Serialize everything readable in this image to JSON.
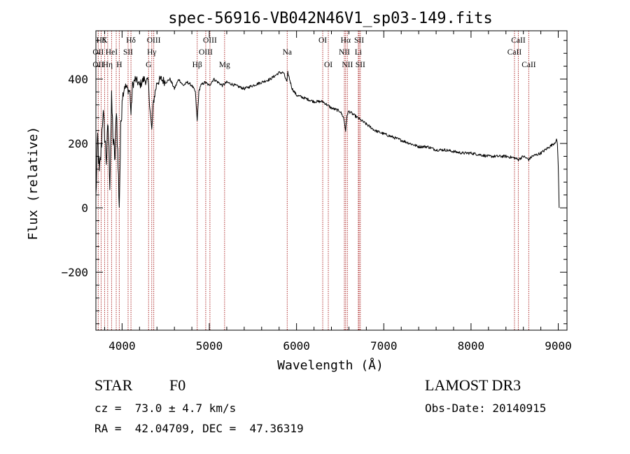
{
  "chart_data": {
    "type": "line",
    "title": "spec-56916-VB042N46V1_sp03-149.fits",
    "xlabel": "Wavelength (Å)",
    "ylabel": "Flux (relative)",
    "xlim": [
      3700,
      9100
    ],
    "ylim": [
      -380,
      550
    ],
    "xticks": [
      4000,
      5000,
      6000,
      7000,
      8000,
      9000
    ],
    "yticks": [
      -200,
      0,
      200,
      400
    ],
    "grid": false,
    "series": [
      {
        "name": "spectrum",
        "color": "#000000",
        "x": [
          3700,
          3720,
          3740,
          3760,
          3780,
          3800,
          3820,
          3840,
          3860,
          3880,
          3900,
          3920,
          3935,
          3950,
          3968,
          3985,
          4000,
          4030,
          4060,
          4090,
          4102,
          4120,
          4150,
          4180,
          4200,
          4250,
          4300,
          4320,
          4340,
          4360,
          4400,
          4450,
          4500,
          4550,
          4600,
          4650,
          4700,
          4750,
          4800,
          4840,
          4861,
          4880,
          4900,
          4950,
          5000,
          5050,
          5100,
          5150,
          5200,
          5300,
          5400,
          5500,
          5600,
          5700,
          5750,
          5800,
          5850,
          5890,
          5900,
          5950,
          6000,
          6100,
          6200,
          6300,
          6400,
          6500,
          6540,
          6563,
          6580,
          6600,
          6700,
          6800,
          6900,
          7000,
          7100,
          7200,
          7300,
          7400,
          7500,
          7600,
          7700,
          7800,
          7900,
          8000,
          8100,
          8200,
          8300,
          8400,
          8498,
          8542,
          8600,
          8662,
          8700,
          8800,
          8900,
          8950,
          8980,
          8990,
          9000,
          9010
        ],
        "y": [
          30,
          220,
          100,
          180,
          300,
          230,
          150,
          260,
          80,
          330,
          200,
          150,
          320,
          170,
          10,
          240,
          340,
          380,
          370,
          360,
          290,
          380,
          400,
          390,
          380,
          400,
          390,
          310,
          240,
          330,
          390,
          400,
          390,
          400,
          370,
          400,
          380,
          390,
          380,
          360,
          270,
          360,
          380,
          390,
          380,
          400,
          390,
          380,
          390,
          380,
          370,
          380,
          390,
          400,
          410,
          420,
          420,
          390,
          420,
          370,
          350,
          340,
          330,
          330,
          310,
          300,
          280,
          240,
          290,
          300,
          280,
          260,
          240,
          230,
          220,
          210,
          200,
          190,
          190,
          180,
          180,
          175,
          170,
          170,
          165,
          160,
          160,
          160,
          155,
          150,
          160,
          150,
          160,
          170,
          190,
          200,
          210,
          200,
          130,
          0
        ]
      }
    ],
    "line_labels": [
      {
        "label": "Hδ",
        "wave": 3760,
        "row": 1
      },
      {
        "label": "K",
        "wave": 3800,
        "row": 1
      },
      {
        "label": "Hδ",
        "wave": 4102,
        "row": 1
      },
      {
        "label": "OIII",
        "wave": 4363,
        "row": 1
      },
      {
        "label": "OIII",
        "wave": 5007,
        "row": 1
      },
      {
        "label": "OI",
        "wave": 6300,
        "row": 1
      },
      {
        "label": "Hα",
        "wave": 6563,
        "row": 1
      },
      {
        "label": "SII",
        "wave": 6717,
        "row": 1
      },
      {
        "label": "CaII",
        "wave": 8542,
        "row": 1
      },
      {
        "label": "OII",
        "wave": 3727,
        "row": 2
      },
      {
        "label": "HeI",
        "wave": 3880,
        "row": 2
      },
      {
        "label": "SII",
        "wave": 4069,
        "row": 2
      },
      {
        "label": "Hγ",
        "wave": 4340,
        "row": 2
      },
      {
        "label": "OIII",
        "wave": 4959,
        "row": 2
      },
      {
        "label": "Na",
        "wave": 5893,
        "row": 2
      },
      {
        "label": "NII",
        "wave": 6548,
        "row": 2
      },
      {
        "label": "Li",
        "wave": 6708,
        "row": 2
      },
      {
        "label": "CaII",
        "wave": 8498,
        "row": 2
      },
      {
        "label": "OII",
        "wave": 3727,
        "row": 3
      },
      {
        "label": "Hη",
        "wave": 3835,
        "row": 3
      },
      {
        "label": "H",
        "wave": 3968,
        "row": 3
      },
      {
        "label": "G",
        "wave": 4304,
        "row": 3
      },
      {
        "label": "Hβ",
        "wave": 4861,
        "row": 3
      },
      {
        "label": "Mg",
        "wave": 5175,
        "row": 3
      },
      {
        "label": "OI",
        "wave": 6364,
        "row": 3
      },
      {
        "label": "NII",
        "wave": 6583,
        "row": 3
      },
      {
        "label": "SII",
        "wave": 6731,
        "row": 3
      },
      {
        "label": "CaII",
        "wave": 8662,
        "row": 3
      }
    ],
    "marker_lines": [
      3727,
      3760,
      3800,
      3835,
      3880,
      3933,
      3968,
      4069,
      4102,
      4304,
      4340,
      4363,
      4861,
      4959,
      5007,
      5175,
      5893,
      6300,
      6364,
      6548,
      6563,
      6583,
      6708,
      6717,
      6731,
      8498,
      8542,
      8662
    ],
    "marker_color": "#b03030",
    "axis_color": "#000000"
  },
  "info": {
    "object_type": "STAR",
    "subclass": "F0",
    "survey": "LAMOST DR3",
    "redshift": "cz =  73.0 ± 4.7 km/s",
    "obs_date": "Obs-Date: 20140915",
    "coords": "RA =  42.04709, DEC =  47.36319"
  }
}
